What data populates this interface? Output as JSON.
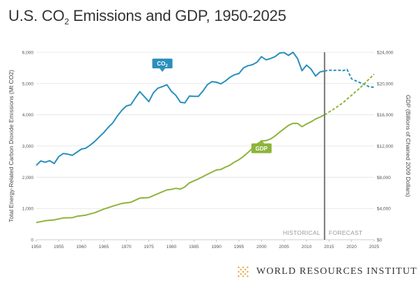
{
  "chart_data": {
    "type": "line",
    "title_before": "U.S. CO",
    "title_sub": "2",
    "title_after": " Emissions and GDP, 1950-2025",
    "ylabel_left": "Total Energy-Related Carbon Dioxide Emissions (Mt CO2)",
    "ylabel_right": "GDP (Billions of Chained 2009 Dollars)",
    "ylim_left": [
      0,
      6000
    ],
    "ylim_right": [
      0,
      24000
    ],
    "xlim": [
      1950,
      2025
    ],
    "x_ticks": [
      "1950",
      "1955",
      "1960",
      "1965",
      "1970",
      "1975",
      "1980",
      "1985",
      "1990",
      "1995",
      "2000",
      "2005",
      "2010",
      "2015",
      "2020",
      "2025"
    ],
    "y_ticks_left": [
      "0",
      "1,000",
      "2,000",
      "3,000",
      "4,000",
      "5,000",
      "6,000"
    ],
    "y_ticks_right": [
      "$0",
      "$4,000",
      "$8,000",
      "$12,000",
      "$16,000",
      "$20,000",
      "$24,000"
    ],
    "divider_year": 2014,
    "period_labels": {
      "historical": "HISTORICAL",
      "forecast": "FORECAST"
    },
    "colors": {
      "co2": "#2a8fbd",
      "gdp": "#8cb43c",
      "divider": "#777777"
    },
    "series": [
      {
        "name": "CO2",
        "label_main": "CO",
        "label_sub": "2",
        "axis": "left",
        "historical": [
          [
            1950,
            2380
          ],
          [
            1951,
            2520
          ],
          [
            1952,
            2480
          ],
          [
            1953,
            2530
          ],
          [
            1954,
            2440
          ],
          [
            1955,
            2660
          ],
          [
            1956,
            2760
          ],
          [
            1957,
            2740
          ],
          [
            1958,
            2700
          ],
          [
            1959,
            2800
          ],
          [
            1960,
            2900
          ],
          [
            1961,
            2930
          ],
          [
            1962,
            3030
          ],
          [
            1963,
            3150
          ],
          [
            1964,
            3290
          ],
          [
            1965,
            3430
          ],
          [
            1966,
            3600
          ],
          [
            1967,
            3740
          ],
          [
            1968,
            3960
          ],
          [
            1969,
            4140
          ],
          [
            1970,
            4280
          ],
          [
            1971,
            4320
          ],
          [
            1972,
            4540
          ],
          [
            1973,
            4740
          ],
          [
            1974,
            4580
          ],
          [
            1975,
            4420
          ],
          [
            1976,
            4700
          ],
          [
            1977,
            4850
          ],
          [
            1978,
            4900
          ],
          [
            1979,
            4960
          ],
          [
            1980,
            4750
          ],
          [
            1981,
            4620
          ],
          [
            1982,
            4400
          ],
          [
            1983,
            4380
          ],
          [
            1984,
            4600
          ],
          [
            1985,
            4590
          ],
          [
            1986,
            4590
          ],
          [
            1987,
            4760
          ],
          [
            1988,
            4960
          ],
          [
            1989,
            5060
          ],
          [
            1990,
            5040
          ],
          [
            1991,
            4990
          ],
          [
            1992,
            5080
          ],
          [
            1993,
            5200
          ],
          [
            1994,
            5280
          ],
          [
            1995,
            5320
          ],
          [
            1996,
            5500
          ],
          [
            1997,
            5570
          ],
          [
            1998,
            5600
          ],
          [
            1999,
            5680
          ],
          [
            2000,
            5860
          ],
          [
            2001,
            5760
          ],
          [
            2002,
            5800
          ],
          [
            2003,
            5860
          ],
          [
            2004,
            5970
          ],
          [
            2005,
            5990
          ],
          [
            2006,
            5900
          ],
          [
            2007,
            6000
          ],
          [
            2008,
            5800
          ],
          [
            2009,
            5410
          ],
          [
            2010,
            5590
          ],
          [
            2011,
            5460
          ],
          [
            2012,
            5240
          ],
          [
            2013,
            5370
          ],
          [
            2014,
            5400
          ]
        ],
        "forecast": [
          [
            2014,
            5400
          ],
          [
            2015,
            5430
          ],
          [
            2016,
            5420
          ],
          [
            2017,
            5430
          ],
          [
            2018,
            5410
          ],
          [
            2019,
            5450
          ],
          [
            2020,
            5150
          ],
          [
            2021,
            5080
          ],
          [
            2022,
            5020
          ],
          [
            2023,
            4960
          ],
          [
            2024,
            4890
          ],
          [
            2025,
            4880
          ]
        ]
      },
      {
        "name": "GDP",
        "label_main": "GDP",
        "label_sub": "",
        "axis": "right",
        "historical": [
          [
            1950,
            2200
          ],
          [
            1952,
            2430
          ],
          [
            1954,
            2540
          ],
          [
            1956,
            2780
          ],
          [
            1958,
            2820
          ],
          [
            1959,
            3000
          ],
          [
            1961,
            3150
          ],
          [
            1963,
            3460
          ],
          [
            1965,
            3920
          ],
          [
            1967,
            4300
          ],
          [
            1969,
            4650
          ],
          [
            1971,
            4800
          ],
          [
            1973,
            5330
          ],
          [
            1975,
            5400
          ],
          [
            1977,
            5900
          ],
          [
            1979,
            6380
          ],
          [
            1980,
            6450
          ],
          [
            1981,
            6580
          ],
          [
            1982,
            6480
          ],
          [
            1983,
            6770
          ],
          [
            1984,
            7280
          ],
          [
            1986,
            7790
          ],
          [
            1988,
            8380
          ],
          [
            1990,
            8930
          ],
          [
            1991,
            9000
          ],
          [
            1992,
            9300
          ],
          [
            1993,
            9550
          ],
          [
            1994,
            9940
          ],
          [
            1995,
            10250
          ],
          [
            1996,
            10670
          ],
          [
            1997,
            11160
          ],
          [
            1998,
            11700
          ],
          [
            1999,
            12240
          ],
          [
            2000,
            12640
          ],
          [
            2001,
            12690
          ],
          [
            2002,
            12900
          ],
          [
            2003,
            13280
          ],
          [
            2004,
            13760
          ],
          [
            2005,
            14200
          ],
          [
            2006,
            14640
          ],
          [
            2007,
            14900
          ],
          [
            2008,
            14890
          ],
          [
            2009,
            14470
          ],
          [
            2010,
            14820
          ],
          [
            2011,
            15100
          ],
          [
            2012,
            15450
          ],
          [
            2013,
            15700
          ],
          [
            2014,
            16000
          ]
        ],
        "forecast": [
          [
            2014,
            16000
          ],
          [
            2016,
            16700
          ],
          [
            2018,
            17500
          ],
          [
            2020,
            18500
          ],
          [
            2022,
            19500
          ],
          [
            2025,
            21200
          ]
        ]
      }
    ]
  },
  "logo": {
    "text": "WORLD RESOURCES INSTITUTE",
    "icon": "wri-diamond-logo-icon",
    "color": "#e3a93f"
  }
}
